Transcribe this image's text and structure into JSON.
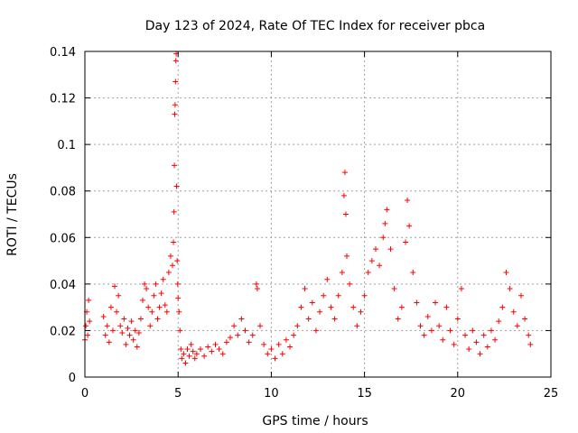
{
  "chart_data": {
    "type": "scatter",
    "title": "Day 123 of 2024, Rate Of TEC Index for receiver pbca",
    "xlabel": "GPS time / hours",
    "ylabel": "ROTI / TECUs",
    "xlim": [
      0,
      25
    ],
    "ylim": [
      0,
      0.14
    ],
    "xticks": [
      0,
      5,
      10,
      15,
      20,
      25
    ],
    "xtick_labels": [
      "0",
      "5",
      "10",
      "15",
      "20",
      "25"
    ],
    "yticks": [
      0,
      0.02,
      0.04,
      0.06,
      0.08,
      0.1,
      0.12,
      0.14
    ],
    "ytick_labels": [
      "0",
      "0.02",
      "0.04",
      "0.06",
      "0.08",
      "0.1",
      "0.12",
      "0.14"
    ],
    "grid": true,
    "marker": "+",
    "colors": {
      "points": "#ff0000",
      "grid": "#a0a0a0",
      "frame": "#000000"
    },
    "series": [
      {
        "name": "ROTI",
        "points": [
          [
            0.0,
            0.016
          ],
          [
            0.05,
            0.022
          ],
          [
            0.1,
            0.028
          ],
          [
            0.15,
            0.018
          ],
          [
            0.2,
            0.033
          ],
          [
            0.25,
            0.024
          ],
          [
            1.0,
            0.026
          ],
          [
            1.1,
            0.018
          ],
          [
            1.2,
            0.022
          ],
          [
            1.3,
            0.015
          ],
          [
            1.4,
            0.03
          ],
          [
            1.5,
            0.02
          ],
          [
            1.6,
            0.039
          ],
          [
            1.7,
            0.028
          ],
          [
            1.8,
            0.035
          ],
          [
            1.9,
            0.022
          ],
          [
            2.0,
            0.019
          ],
          [
            2.1,
            0.025
          ],
          [
            2.2,
            0.014
          ],
          [
            2.3,
            0.021
          ],
          [
            2.4,
            0.018
          ],
          [
            2.5,
            0.024
          ],
          [
            2.6,
            0.016
          ],
          [
            2.7,
            0.02
          ],
          [
            2.8,
            0.013
          ],
          [
            2.9,
            0.019
          ],
          [
            3.0,
            0.025
          ],
          [
            3.1,
            0.033
          ],
          [
            3.2,
            0.04
          ],
          [
            3.3,
            0.038
          ],
          [
            3.4,
            0.03
          ],
          [
            3.5,
            0.022
          ],
          [
            3.6,
            0.028
          ],
          [
            3.7,
            0.035
          ],
          [
            3.8,
            0.04
          ],
          [
            3.9,
            0.025
          ],
          [
            4.0,
            0.03
          ],
          [
            4.1,
            0.036
          ],
          [
            4.2,
            0.042
          ],
          [
            4.3,
            0.031
          ],
          [
            4.4,
            0.028
          ],
          [
            4.5,
            0.045
          ],
          [
            4.6,
            0.052
          ],
          [
            4.7,
            0.048
          ],
          [
            4.75,
            0.058
          ],
          [
            4.78,
            0.071
          ],
          [
            4.8,
            0.091
          ],
          [
            4.82,
            0.113
          ],
          [
            4.84,
            0.117
          ],
          [
            4.86,
            0.127
          ],
          [
            4.88,
            0.136
          ],
          [
            4.9,
            0.139
          ],
          [
            4.92,
            0.082
          ],
          [
            4.95,
            0.05
          ],
          [
            4.98,
            0.04
          ],
          [
            5.0,
            0.034
          ],
          [
            5.05,
            0.028
          ],
          [
            5.1,
            0.02
          ],
          [
            5.15,
            0.012
          ],
          [
            5.2,
            0.008
          ],
          [
            5.3,
            0.01
          ],
          [
            5.4,
            0.006
          ],
          [
            5.5,
            0.012
          ],
          [
            5.6,
            0.009
          ],
          [
            5.7,
            0.014
          ],
          [
            5.8,
            0.011
          ],
          [
            5.9,
            0.008
          ],
          [
            6.0,
            0.01
          ],
          [
            6.2,
            0.012
          ],
          [
            6.4,
            0.009
          ],
          [
            6.6,
            0.013
          ],
          [
            6.8,
            0.011
          ],
          [
            7.0,
            0.014
          ],
          [
            7.2,
            0.012
          ],
          [
            7.4,
            0.01
          ],
          [
            7.6,
            0.015
          ],
          [
            7.8,
            0.017
          ],
          [
            8.0,
            0.022
          ],
          [
            8.2,
            0.018
          ],
          [
            8.4,
            0.025
          ],
          [
            8.6,
            0.02
          ],
          [
            8.8,
            0.015
          ],
          [
            9.0,
            0.018
          ],
          [
            9.2,
            0.04
          ],
          [
            9.25,
            0.038
          ],
          [
            9.4,
            0.022
          ],
          [
            9.6,
            0.014
          ],
          [
            9.8,
            0.01
          ],
          [
            10.0,
            0.012
          ],
          [
            10.2,
            0.008
          ],
          [
            10.4,
            0.014
          ],
          [
            10.6,
            0.01
          ],
          [
            10.8,
            0.016
          ],
          [
            11.0,
            0.013
          ],
          [
            11.2,
            0.018
          ],
          [
            11.4,
            0.022
          ],
          [
            11.6,
            0.03
          ],
          [
            11.8,
            0.038
          ],
          [
            12.0,
            0.025
          ],
          [
            12.2,
            0.032
          ],
          [
            12.4,
            0.02
          ],
          [
            12.6,
            0.028
          ],
          [
            12.8,
            0.035
          ],
          [
            13.0,
            0.042
          ],
          [
            13.2,
            0.03
          ],
          [
            13.4,
            0.025
          ],
          [
            13.6,
            0.035
          ],
          [
            13.8,
            0.045
          ],
          [
            13.9,
            0.078
          ],
          [
            13.95,
            0.088
          ],
          [
            14.0,
            0.07
          ],
          [
            14.05,
            0.052
          ],
          [
            14.2,
            0.04
          ],
          [
            14.4,
            0.03
          ],
          [
            14.6,
            0.022
          ],
          [
            14.8,
            0.028
          ],
          [
            15.0,
            0.035
          ],
          [
            15.2,
            0.045
          ],
          [
            15.4,
            0.05
          ],
          [
            15.6,
            0.055
          ],
          [
            15.8,
            0.048
          ],
          [
            16.0,
            0.06
          ],
          [
            16.1,
            0.066
          ],
          [
            16.2,
            0.072
          ],
          [
            16.4,
            0.055
          ],
          [
            16.6,
            0.038
          ],
          [
            16.8,
            0.025
          ],
          [
            17.0,
            0.03
          ],
          [
            17.2,
            0.058
          ],
          [
            17.3,
            0.076
          ],
          [
            17.4,
            0.065
          ],
          [
            17.6,
            0.045
          ],
          [
            17.8,
            0.032
          ],
          [
            18.0,
            0.022
          ],
          [
            18.2,
            0.018
          ],
          [
            18.4,
            0.026
          ],
          [
            18.6,
            0.02
          ],
          [
            18.8,
            0.032
          ],
          [
            19.0,
            0.022
          ],
          [
            19.2,
            0.016
          ],
          [
            19.4,
            0.03
          ],
          [
            19.6,
            0.02
          ],
          [
            19.8,
            0.014
          ],
          [
            20.0,
            0.025
          ],
          [
            20.2,
            0.038
          ],
          [
            20.4,
            0.018
          ],
          [
            20.6,
            0.012
          ],
          [
            20.8,
            0.02
          ],
          [
            21.0,
            0.015
          ],
          [
            21.2,
            0.01
          ],
          [
            21.4,
            0.018
          ],
          [
            21.6,
            0.013
          ],
          [
            21.8,
            0.02
          ],
          [
            22.0,
            0.016
          ],
          [
            22.2,
            0.024
          ],
          [
            22.4,
            0.03
          ],
          [
            22.6,
            0.045
          ],
          [
            22.8,
            0.038
          ],
          [
            23.0,
            0.028
          ],
          [
            23.2,
            0.022
          ],
          [
            23.4,
            0.035
          ],
          [
            23.6,
            0.025
          ],
          [
            23.8,
            0.018
          ],
          [
            23.9,
            0.014
          ]
        ]
      }
    ]
  }
}
